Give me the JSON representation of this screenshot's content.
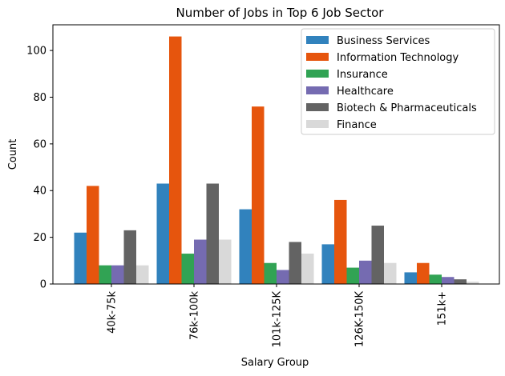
{
  "chart_data": {
    "type": "bar",
    "title": "Number of Jobs in Top 6 Job Sector",
    "xlabel": "Salary Group",
    "ylabel": "Count",
    "ylim": [
      0,
      111
    ],
    "yticks": [
      0,
      20,
      40,
      60,
      80,
      100
    ],
    "grid": false,
    "legend_position": "top-right",
    "categories": [
      "40k-75k",
      "76k-100k",
      "101k-125K",
      "126K-150K",
      "151k+"
    ],
    "series": [
      {
        "name": "Business Services",
        "color": "#3182bd",
        "values": [
          22,
          43,
          32,
          17,
          5
        ]
      },
      {
        "name": "Information Technology",
        "color": "#e6550d",
        "values": [
          42,
          106,
          76,
          36,
          9
        ]
      },
      {
        "name": "Insurance",
        "color": "#31a354",
        "values": [
          8,
          13,
          9,
          7,
          4
        ]
      },
      {
        "name": "Healthcare",
        "color": "#756bb1",
        "values": [
          8,
          19,
          6,
          10,
          3
        ]
      },
      {
        "name": "Biotech & Pharmaceuticals",
        "color": "#636363",
        "values": [
          23,
          43,
          18,
          25,
          2
        ]
      },
      {
        "name": "Finance",
        "color": "#d9d9d9",
        "values": [
          8,
          19,
          13,
          9,
          1
        ]
      }
    ]
  }
}
